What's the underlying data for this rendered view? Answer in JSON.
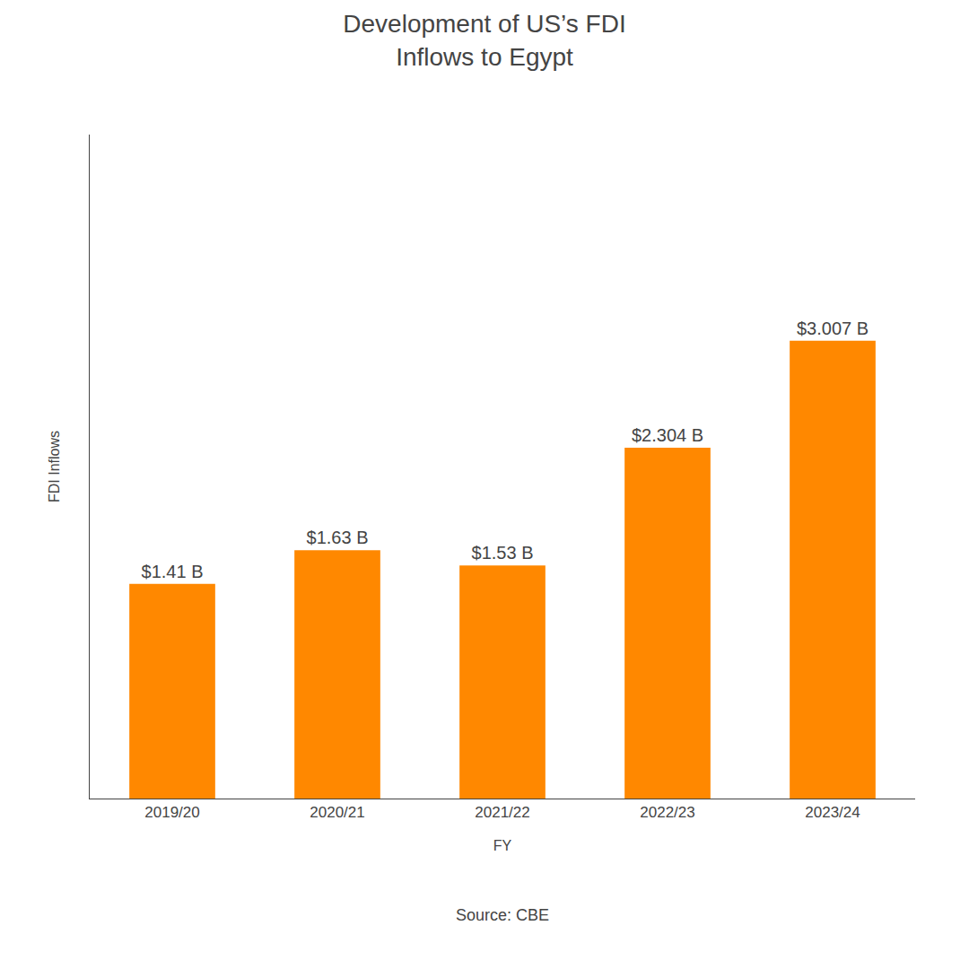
{
  "chart_data": {
    "type": "bar",
    "title": "Development of US’s FDI\nInflows to Egypt",
    "categories": [
      "2019/20",
      "2020/21",
      "2021/22",
      "2022/23",
      "2023/24"
    ],
    "values": [
      1.41,
      1.63,
      1.53,
      2.304,
      3.007
    ],
    "value_labels": [
      "$1.41 B",
      "$1.63 B",
      "$1.53 B",
      "$2.304 B",
      "$3.007 B"
    ],
    "data_labels": true,
    "xlabel": "FY",
    "ylabel": "FDI Inflows",
    "annotations": [
      "Source: CBE"
    ],
    "color": "#FF8800",
    "ylim": [
      0,
      4.36015
    ],
    "tick_labels": "x",
    "grid": false
  }
}
